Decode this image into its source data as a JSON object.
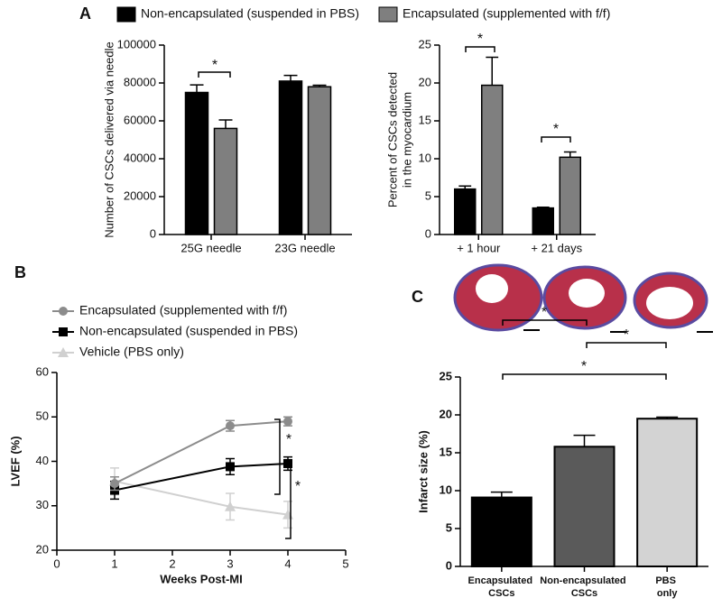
{
  "chart_data": [
    {
      "type": "bar",
      "panel": "A",
      "ylabel": "Number of CSCs delivered via needle",
      "categories": [
        "25G needle",
        "23G needle"
      ],
      "series": [
        {
          "name": "Non-encapsulated (suspended in PBS)",
          "color": "#000000",
          "values": [
            75000,
            81000
          ],
          "errors": [
            4000,
            3000
          ]
        },
        {
          "name": "Encapsulated (supplemented with f/f)",
          "color": "#7f7f7f",
          "values": [
            56000,
            78000
          ],
          "errors": [
            4500,
            800
          ]
        }
      ],
      "ylim": [
        0,
        100000
      ],
      "yticks": [
        0,
        20000,
        40000,
        60000,
        80000,
        100000
      ],
      "legend": "top",
      "annotations": [
        "*"
      ]
    },
    {
      "type": "bar",
      "ylabel": [
        "Percent of CSCs detected",
        "in the myocardium"
      ],
      "categories": [
        "+ 1 hour",
        "+ 21 days"
      ],
      "series": [
        {
          "color": "#000000",
          "values": [
            6,
            3.5
          ],
          "errors": [
            0.4,
            0.1
          ]
        },
        {
          "color": "#7f7f7f",
          "values": [
            19.7,
            10.2
          ],
          "errors": [
            3.7,
            0.7
          ]
        }
      ],
      "ylim": [
        0,
        25
      ],
      "yticks": [
        0,
        5,
        10,
        15,
        20,
        25
      ],
      "annotations": [
        "*",
        "*"
      ]
    },
    {
      "type": "line",
      "panel": "B",
      "xlabel": "Weeks Post-MI",
      "ylabel": "LVEF (%)",
      "x": [
        1,
        3,
        4
      ],
      "series": [
        {
          "name": "Encapsulated (supplemented with f/f)",
          "color": "#8c8c8c",
          "marker": "circle",
          "values": [
            35,
            48,
            49
          ],
          "errors": [
            1.5,
            1.2,
            1
          ]
        },
        {
          "name": "Non-encapsulated (suspended in PBS)",
          "color": "#000000",
          "marker": "square",
          "values": [
            33.5,
            38.8,
            39.5
          ],
          "errors": [
            2,
            1.8,
            1.5
          ]
        },
        {
          "name": "Vehicle (PBS only)",
          "color": "#d0d0d0",
          "marker": "triangle",
          "values": [
            35.5,
            29.8,
            28
          ],
          "errors": [
            3,
            3,
            3
          ]
        }
      ],
      "xlim": [
        0,
        5
      ],
      "xticks": [
        0,
        1,
        2,
        3,
        4,
        5
      ],
      "ylim": [
        20,
        60
      ],
      "yticks": [
        20,
        30,
        40,
        50,
        60
      ],
      "legend": "upper left",
      "annotations": [
        "*",
        "*"
      ]
    },
    {
      "type": "bar",
      "panel": "C",
      "ylabel": "Infarct size (%)",
      "categories": [
        "Encapsulated CSCs",
        "Non-encapsulated CSCs",
        "PBS only"
      ],
      "values": [
        9.1,
        15.8,
        19.5
      ],
      "errors": [
        0.7,
        1.5,
        0.2
      ],
      "colors": [
        "#000000",
        "#5a5a5a",
        "#d3d3d3"
      ],
      "ylim": [
        0,
        25
      ],
      "yticks": [
        0,
        5,
        10,
        15,
        20,
        25
      ],
      "annotations": [
        "*",
        "*",
        "*"
      ]
    }
  ]
}
